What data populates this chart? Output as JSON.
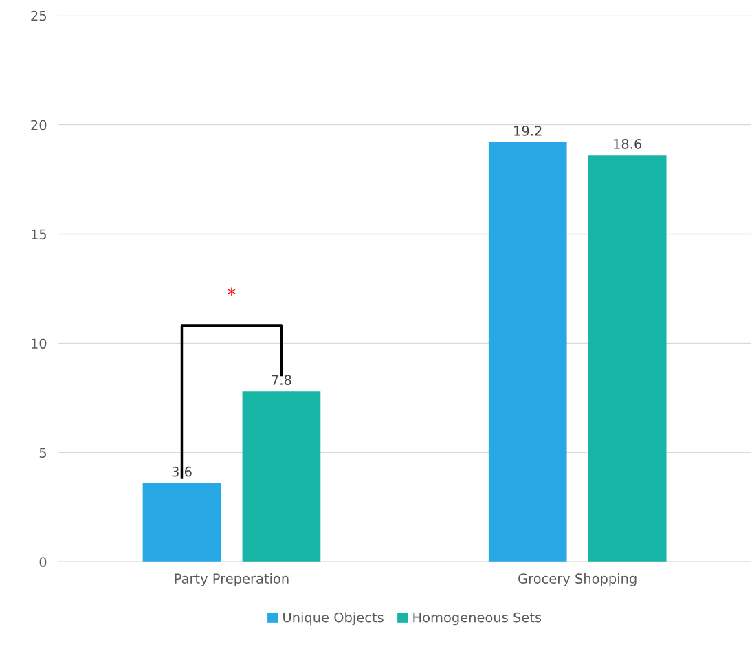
{
  "chart_data": {
    "type": "bar",
    "categories": [
      "Party Preperation",
      "Grocery Shopping"
    ],
    "series": [
      {
        "name": "Unique Objects",
        "color": "#29a8e6",
        "values": [
          3.6,
          19.2
        ]
      },
      {
        "name": "Homogeneous Sets",
        "color": "#16b5a6",
        "values": [
          7.8,
          18.6
        ]
      }
    ],
    "ylim": [
      0,
      25
    ],
    "yticks": [
      0,
      5,
      10,
      15,
      20,
      25
    ],
    "grid": "y",
    "legend": "bottom",
    "data_labels": true,
    "annotations": [
      "*"
    ]
  }
}
